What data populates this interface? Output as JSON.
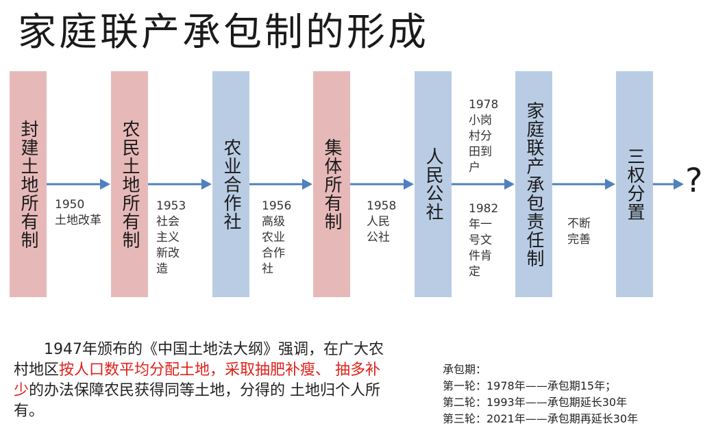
{
  "title": "家庭联产承包制的形成",
  "stages": [
    {
      "label": "封建土地所有制",
      "color": "pink"
    },
    {
      "label": "农民土地所有制",
      "color": "pink"
    },
    {
      "label": "农业合作社",
      "color": "blue"
    },
    {
      "label": "集体所有制",
      "color": "pink"
    },
    {
      "label": "人民公社",
      "color": "blue"
    },
    {
      "label": "家庭联产承包责任制",
      "color": "blue"
    },
    {
      "label": "三权分置",
      "color": "blue"
    }
  ],
  "notes": {
    "n1": "1950\n土地改革",
    "n2": "1953\n社会\n主义\n新改\n造",
    "n3": "1956\n高级\n农业\n合作\n社",
    "n4": "1958\n人民\n公社",
    "n5a": "1978\n小岗\n村分\n田到\n户",
    "n5b": "1982\n年一\n号文\n件肯\n定",
    "n6": "不断\n完善"
  },
  "question_mark": "?",
  "paragraph": {
    "part1": "1947年颁布的《中国土地法大纲》强调，在广大农 村地区",
    "red1": "按人口数平均分配土地，采取抽肥补瘦、 抽多补少",
    "part2": "的办法保障农民获得同等土地，分得的 土地归个人所有。"
  },
  "contract": {
    "heading": "承包期：",
    "lines": [
      "第一轮：1978年——承包期15年；",
      "第二轮：1993年——承包期延长30年",
      "第三轮：2021年——承包期再延长30年"
    ]
  },
  "colors": {
    "pink": "#e6b9b8",
    "blue": "#b9cce4",
    "arrow": "#4f81bd",
    "emphasis": "#e0201a"
  }
}
